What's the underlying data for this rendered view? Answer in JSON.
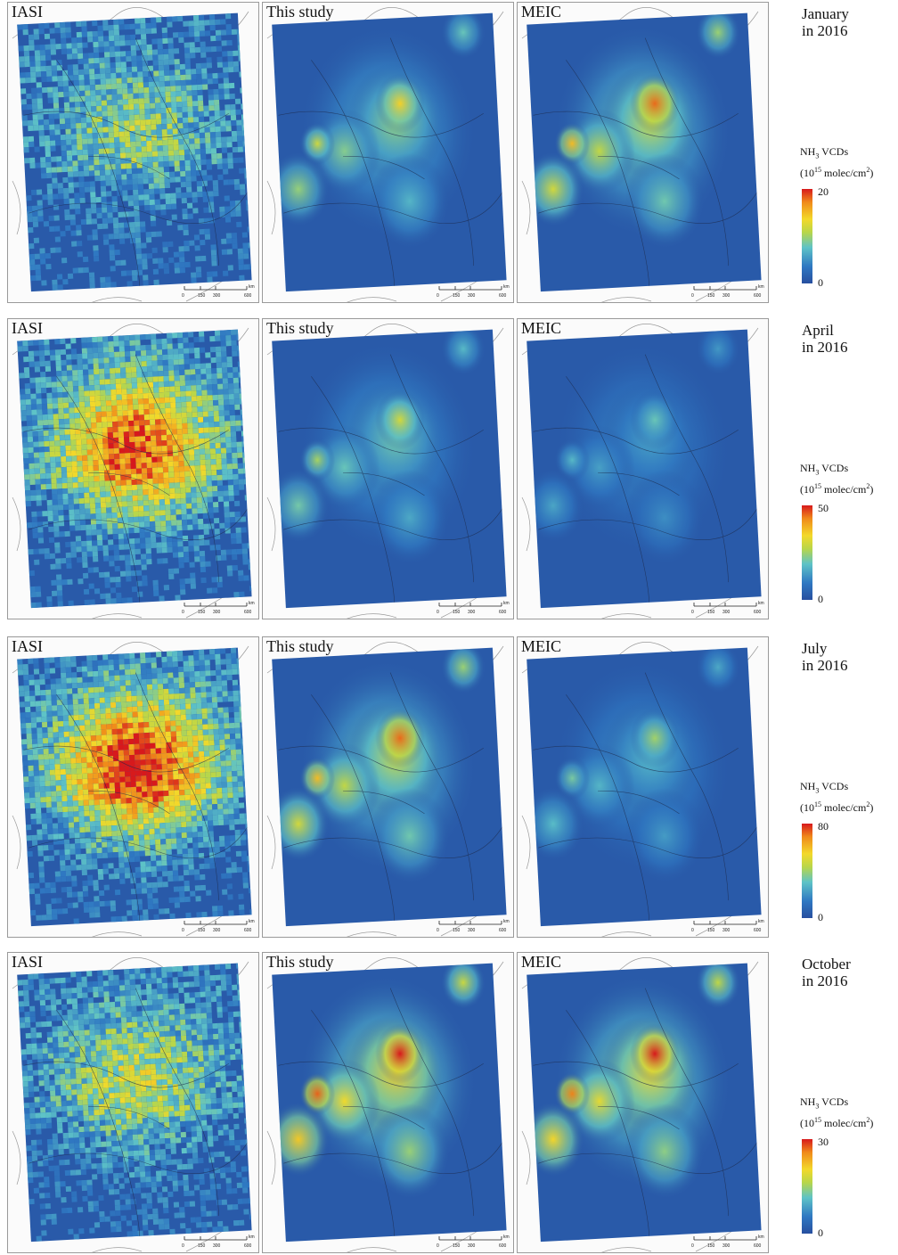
{
  "column_labels": [
    "IASI",
    "This study",
    "MEIC"
  ],
  "scale_bar": {
    "ticks": [
      "0",
      "150",
      "300",
      "600"
    ],
    "unit": "km"
  },
  "colorbar_title": {
    "prefix": "NH",
    "sub": "3",
    "suffix": " VCDs",
    "unit_prefix": "(10",
    "unit_sup": "15",
    "unit_mid": " molec/cm",
    "unit_sup2": "2",
    "unit_end": ")"
  },
  "colorbar_colors": [
    "#d7191c",
    "#f08a1a",
    "#f3d92a",
    "#b8d64a",
    "#5ec3c7",
    "#2f78c2",
    "#274f9f"
  ],
  "rows": [
    {
      "month": "January",
      "year": "in 2016",
      "cb_max": "20",
      "cb_min": "0"
    },
    {
      "month": "April",
      "year": "in 2016",
      "cb_max": "50",
      "cb_min": "0"
    },
    {
      "month": "July",
      "year": "in 2016",
      "cb_max": "80",
      "cb_min": "0"
    },
    {
      "month": "October",
      "year": "in 2016",
      "cb_max": "30",
      "cb_min": "0"
    }
  ]
}
